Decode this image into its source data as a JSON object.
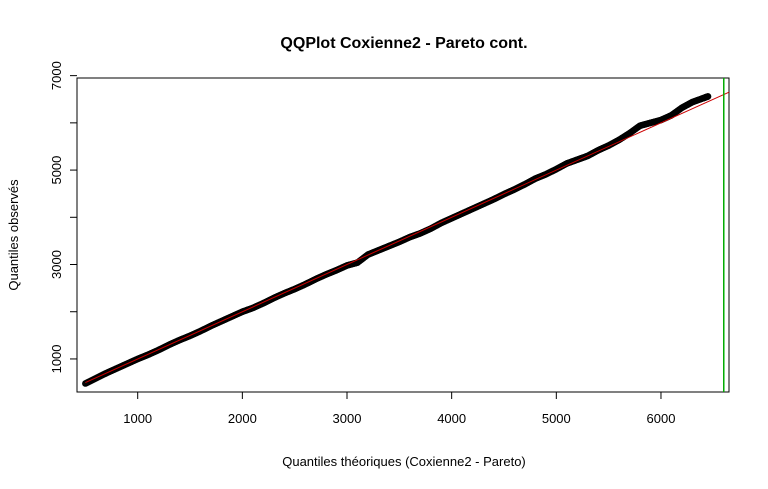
{
  "chart_data": {
    "type": "scatter",
    "title": "QQPlot Coxienne2 - Pareto cont.",
    "xlabel": "Quantiles théoriques (Coxienne2 - Pareto)",
    "ylabel": "Quantiles observés",
    "xlim": [
      420,
      6650
    ],
    "ylim": [
      300,
      6950
    ],
    "x_ticks": [
      1000,
      2000,
      3000,
      4000,
      5000,
      6000
    ],
    "x_tick_labels": [
      "1000",
      "2000",
      "3000",
      "4000",
      "5000",
      "6000"
    ],
    "y_ticks": [
      1000,
      2000,
      3000,
      4000,
      5000,
      6000,
      7000
    ],
    "y_tick_labels": [
      "1000",
      "",
      "3000",
      "",
      "5000",
      "",
      "7000"
    ],
    "grid": false,
    "marker": "open-circle",
    "reference_line": {
      "color": "#cc0000",
      "from": [
        500,
        500
      ],
      "to": [
        6650,
        6650
      ]
    },
    "vertical_line": {
      "color": "#00aa00",
      "x": 6600
    },
    "points": [
      [
        500,
        480
      ],
      [
        600,
        590
      ],
      [
        700,
        700
      ],
      [
        800,
        800
      ],
      [
        900,
        900
      ],
      [
        1000,
        1000
      ],
      [
        1100,
        1090
      ],
      [
        1200,
        1190
      ],
      [
        1300,
        1300
      ],
      [
        1400,
        1400
      ],
      [
        1500,
        1490
      ],
      [
        1600,
        1590
      ],
      [
        1700,
        1700
      ],
      [
        1800,
        1800
      ],
      [
        1900,
        1900
      ],
      [
        2000,
        2000
      ],
      [
        2100,
        2080
      ],
      [
        2200,
        2180
      ],
      [
        2300,
        2290
      ],
      [
        2400,
        2390
      ],
      [
        2500,
        2480
      ],
      [
        2600,
        2580
      ],
      [
        2700,
        2690
      ],
      [
        2800,
        2790
      ],
      [
        2900,
        2880
      ],
      [
        3000,
        2980
      ],
      [
        3100,
        3040
      ],
      [
        3200,
        3210
      ],
      [
        3300,
        3300
      ],
      [
        3400,
        3390
      ],
      [
        3500,
        3480
      ],
      [
        3600,
        3580
      ],
      [
        3700,
        3660
      ],
      [
        3800,
        3760
      ],
      [
        3900,
        3880
      ],
      [
        4000,
        3980
      ],
      [
        4100,
        4080
      ],
      [
        4200,
        4180
      ],
      [
        4300,
        4280
      ],
      [
        4400,
        4380
      ],
      [
        4500,
        4490
      ],
      [
        4600,
        4590
      ],
      [
        4700,
        4700
      ],
      [
        4800,
        4820
      ],
      [
        4900,
        4910
      ],
      [
        5000,
        5020
      ],
      [
        5100,
        5140
      ],
      [
        5200,
        5220
      ],
      [
        5300,
        5300
      ],
      [
        5400,
        5420
      ],
      [
        5500,
        5520
      ],
      [
        5600,
        5640
      ],
      [
        5700,
        5780
      ],
      [
        5800,
        5940
      ],
      [
        5900,
        6000
      ],
      [
        6000,
        6060
      ],
      [
        6100,
        6160
      ],
      [
        6200,
        6320
      ],
      [
        6300,
        6440
      ],
      [
        6400,
        6520
      ],
      [
        6450,
        6560
      ]
    ]
  }
}
